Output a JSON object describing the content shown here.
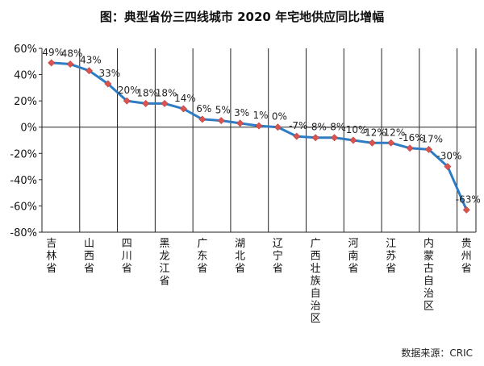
{
  "chart_data": {
    "type": "line",
    "title": "图：典型省份三四线城市 2020 年宅地供应同比增幅",
    "source": "数据来源：CRIC",
    "ylim": [
      -80,
      60
    ],
    "ytick_step": 20,
    "ytick_labels": [
      "60%",
      "40%",
      "20%",
      "0%",
      "-20%",
      "-40%",
      "-60%",
      "-80%"
    ],
    "grid": false,
    "line_color": "#2e7cc4",
    "marker_color": "#d9534f",
    "categories": [
      "吉林省",
      "",
      "山西省",
      "",
      "四川省",
      "",
      "黑龙江省",
      "",
      "广东省",
      "",
      "湖北省",
      "",
      "辽宁省",
      "",
      "广西壮族自治区",
      "",
      "河南省",
      "",
      "江苏省",
      "",
      "内蒙古自治区",
      "",
      "贵州省"
    ],
    "values": [
      49,
      48,
      43,
      33,
      20,
      18,
      18,
      14,
      6,
      5,
      3,
      1,
      0,
      -7,
      -8,
      -8,
      -10,
      -12,
      -12,
      -16,
      -17,
      -30,
      -63
    ],
    "data_labels": [
      "49%",
      "48%",
      "43%",
      "33%",
      "20%",
      "18%",
      "18%",
      "14%",
      "6%",
      "5%",
      "3%",
      "1%",
      "0%",
      "-7%",
      "-8%",
      "-8%",
      "-10%",
      "-12%",
      "-12%",
      "-16%",
      "-17%",
      "-30%",
      "-63%"
    ]
  }
}
